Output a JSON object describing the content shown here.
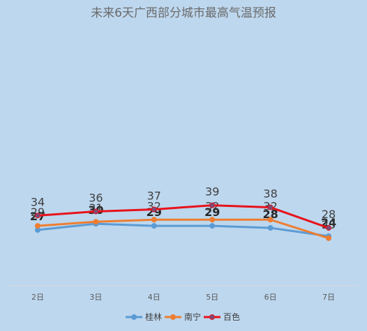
{
  "chart_data": {
    "type": "line",
    "title": "未来6天广西部分城市最高气温预报",
    "categories": [
      "2日",
      "3日",
      "4日",
      "5日",
      "6日",
      "7日"
    ],
    "ylim": [
      0,
      50
    ],
    "grid": false,
    "legend_position": "bottom",
    "series": [
      {
        "name": "桂林",
        "values": [
          27,
          30,
          29,
          29,
          28,
          24
        ],
        "color": "#5b9bd5",
        "label_style": "bold"
      },
      {
        "name": "南宁",
        "values": [
          29,
          31,
          32,
          32,
          32,
          23
        ],
        "color": "#ed7d31",
        "label_style": "normal"
      },
      {
        "name": "百色",
        "values": [
          34,
          36,
          37,
          39,
          38,
          28
        ],
        "color": "#e8121b",
        "marker_color": "#7b4a7a",
        "label_style": "normal"
      }
    ]
  }
}
